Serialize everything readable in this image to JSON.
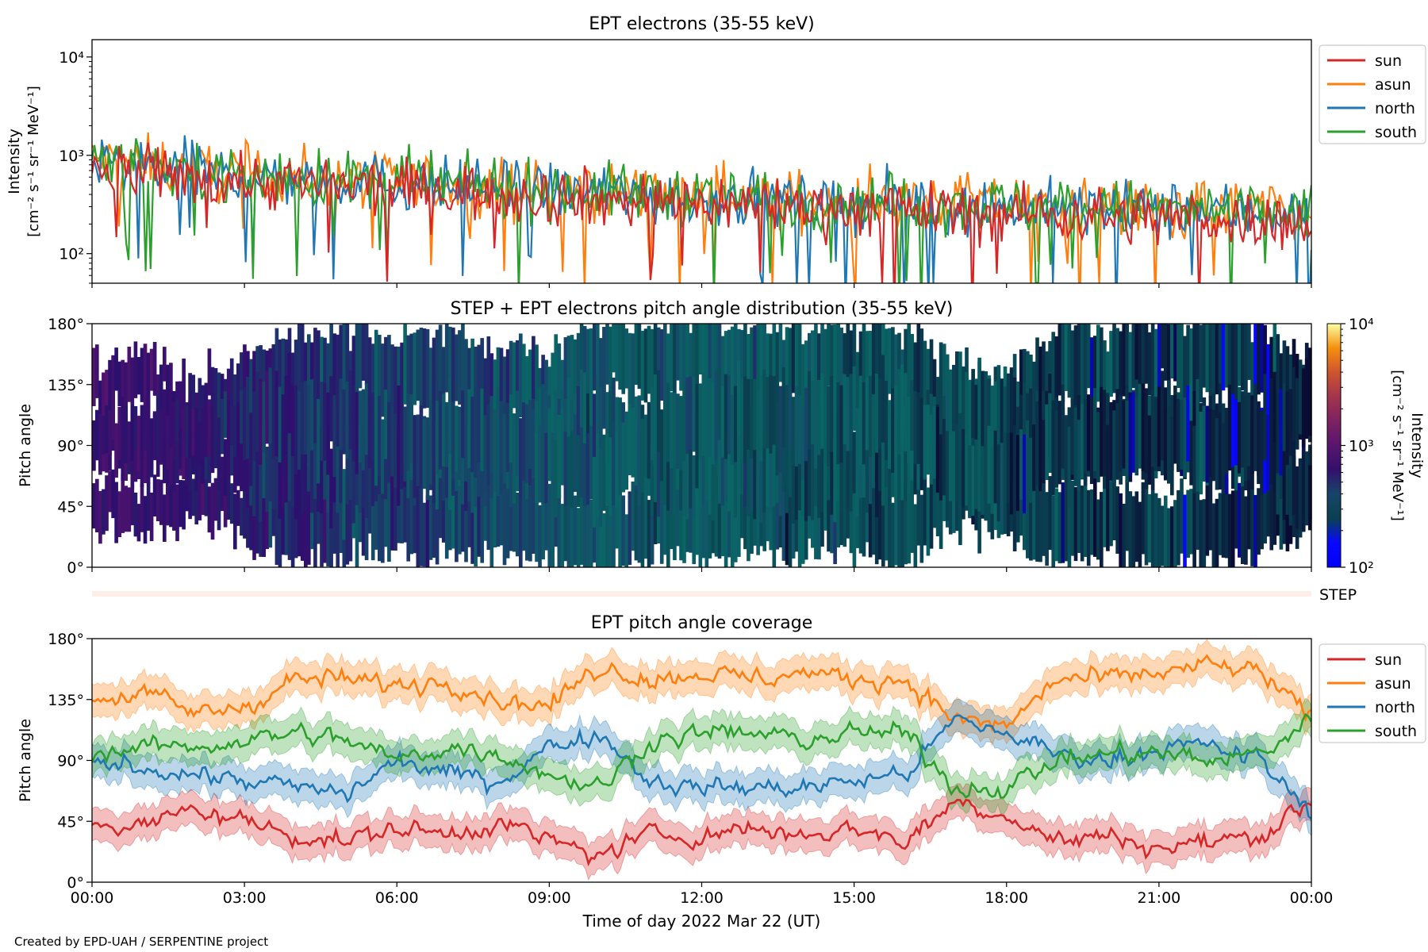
{
  "footer": {
    "credit": "Created by EPD-UAH / SERPENTINE project"
  },
  "colors": {
    "sun": "#d62728",
    "asun": "#ff7f0e",
    "north": "#1f77b4",
    "south": "#2ca02c",
    "background": "#ffffff"
  },
  "chart_data": [
    {
      "type": "line",
      "title": "EPT electrons (35-55 keV)",
      "ylabel": "Intensity",
      "ylabel_units": "[cm⁻² s⁻¹ sr⁻¹ MeV⁻¹]",
      "yscale": "log",
      "ylim": [
        50,
        15000
      ],
      "yticks": [
        100,
        1000,
        10000
      ],
      "yticklabels": [
        "10²",
        "10³",
        "10⁴"
      ],
      "x_unit": "hours since 2022-03-22 00:00 UT",
      "xlim": [
        0,
        24
      ],
      "legend_position": "outside-right",
      "series": [
        {
          "name": "sun",
          "color": "#d62728",
          "hours": [
            0,
            1,
            2,
            3,
            4,
            5,
            6,
            7,
            8,
            9,
            10,
            11,
            12,
            13,
            14,
            15,
            16,
            17,
            18,
            19,
            20,
            21,
            22,
            23,
            24
          ],
          "median": [
            750,
            650,
            600,
            550,
            520,
            480,
            470,
            440,
            420,
            380,
            360,
            340,
            330,
            320,
            300,
            290,
            280,
            270,
            260,
            250,
            240,
            230,
            230,
            220,
            210
          ]
        },
        {
          "name": "asun",
          "color": "#ff7f0e",
          "hours": [
            0,
            1,
            2,
            3,
            4,
            5,
            6,
            7,
            8,
            9,
            10,
            11,
            12,
            13,
            14,
            15,
            16,
            17,
            18,
            19,
            20,
            21,
            22,
            23,
            24
          ],
          "median": [
            900,
            800,
            700,
            650,
            600,
            560,
            540,
            500,
            480,
            450,
            430,
            410,
            400,
            380,
            360,
            350,
            340,
            330,
            320,
            310,
            300,
            290,
            290,
            280,
            270
          ]
        },
        {
          "name": "north",
          "color": "#1f77b4",
          "hours": [
            0,
            1,
            2,
            3,
            4,
            5,
            6,
            7,
            8,
            9,
            10,
            11,
            12,
            13,
            14,
            15,
            16,
            17,
            18,
            19,
            20,
            21,
            22,
            23,
            24
          ],
          "median": [
            850,
            750,
            680,
            620,
            580,
            540,
            520,
            480,
            460,
            430,
            410,
            390,
            380,
            360,
            340,
            330,
            320,
            310,
            300,
            290,
            280,
            270,
            270,
            260,
            250
          ]
        },
        {
          "name": "south",
          "color": "#2ca02c",
          "hours": [
            0,
            1,
            2,
            3,
            4,
            5,
            6,
            7,
            8,
            9,
            10,
            11,
            12,
            13,
            14,
            15,
            16,
            17,
            18,
            19,
            20,
            21,
            22,
            23,
            24
          ],
          "median": [
            880,
            780,
            690,
            640,
            590,
            550,
            530,
            490,
            470,
            440,
            420,
            400,
            390,
            370,
            350,
            340,
            330,
            320,
            310,
            300,
            290,
            280,
            280,
            270,
            260
          ]
        }
      ]
    },
    {
      "type": "heatmap",
      "title": "STEP + EPT electrons pitch angle distribution (35-55 keV)",
      "ylabel": "Pitch angle",
      "yticklabels": [
        "0°",
        "45°",
        "90°",
        "135°",
        "180°"
      ],
      "ylim": [
        0,
        180
      ],
      "xlim": [
        0,
        24
      ],
      "colorbar": {
        "label": "Intensity",
        "units": "[cm⁻² s⁻¹ sr⁻¹ MeV⁻¹]",
        "scale": "log",
        "range": [
          100,
          10000
        ],
        "ticklabels": [
          "10²",
          "10³",
          "10⁴"
        ],
        "colormap": "inferno"
      },
      "intensity_by_hour": [
        700,
        650,
        560,
        500,
        470,
        440,
        420,
        400,
        380,
        350,
        330,
        320,
        310,
        300,
        290,
        280,
        270,
        260,
        250,
        240,
        230,
        230,
        220,
        210
      ]
    },
    {
      "type": "bar",
      "label": "STEP",
      "note": "thin coverage band"
    },
    {
      "type": "line",
      "title": "EPT pitch angle coverage",
      "ylabel": "Pitch angle",
      "ylim": [
        0,
        180
      ],
      "yticklabels": [
        "0°",
        "45°",
        "90°",
        "135°",
        "180°"
      ],
      "xlabel": "Time of day 2022 Mar 22 (UT)",
      "xticklabels": [
        "00:00",
        "03:00",
        "06:00",
        "09:00",
        "12:00",
        "15:00",
        "18:00",
        "21:00",
        "00:00"
      ],
      "xlim": [
        0,
        24
      ],
      "legend_position": "outside-right",
      "series": [
        {
          "name": "sun",
          "color": "#d62728",
          "hours": [
            0,
            1,
            2,
            3,
            4,
            5,
            6,
            7,
            8,
            9,
            10,
            11,
            12,
            13,
            14,
            15,
            16,
            17,
            18,
            19,
            20,
            21,
            22,
            23,
            24
          ],
          "values": [
            45,
            40,
            55,
            45,
            35,
            30,
            40,
            35,
            45,
            30,
            20,
            35,
            35,
            40,
            35,
            40,
            30,
            60,
            50,
            30,
            35,
            25,
            30,
            35,
            60
          ]
        },
        {
          "name": "asun",
          "color": "#ff7f0e",
          "hours": [
            0,
            1,
            2,
            3,
            4,
            5,
            6,
            7,
            8,
            9,
            10,
            11,
            12,
            13,
            14,
            15,
            16,
            17,
            18,
            19,
            20,
            21,
            22,
            23,
            24
          ],
          "values": [
            135,
            140,
            125,
            130,
            150,
            150,
            145,
            150,
            135,
            130,
            160,
            150,
            155,
            150,
            155,
            150,
            150,
            120,
            115,
            150,
            150,
            155,
            160,
            155,
            120
          ]
        },
        {
          "name": "north",
          "color": "#1f77b4",
          "hours": [
            0,
            1,
            2,
            3,
            4,
            5,
            6,
            7,
            8,
            9,
            10,
            11,
            12,
            13,
            14,
            15,
            16,
            17,
            18,
            19,
            20,
            21,
            22,
            23,
            24
          ],
          "values": [
            90,
            85,
            80,
            75,
            70,
            65,
            90,
            80,
            75,
            100,
            110,
            75,
            70,
            70,
            70,
            75,
            80,
            120,
            110,
            95,
            90,
            100,
            100,
            90,
            50
          ]
        },
        {
          "name": "south",
          "color": "#2ca02c",
          "hours": [
            0,
            1,
            2,
            3,
            4,
            5,
            6,
            7,
            8,
            9,
            10,
            11,
            12,
            13,
            14,
            15,
            16,
            17,
            18,
            19,
            20,
            21,
            22,
            23,
            24
          ],
          "values": [
            95,
            100,
            100,
            105,
            110,
            105,
            90,
            100,
            95,
            80,
            70,
            105,
            110,
            110,
            105,
            110,
            110,
            70,
            70,
            90,
            95,
            95,
            90,
            95,
            120
          ]
        }
      ]
    }
  ]
}
